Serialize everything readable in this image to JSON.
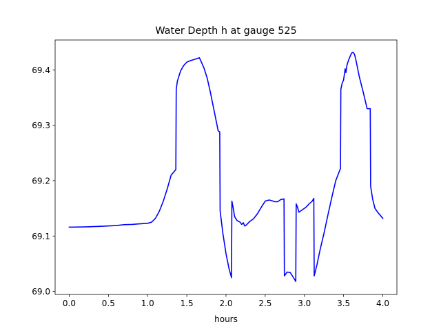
{
  "chart_data": {
    "type": "line",
    "title": "Water Depth h at gauge 525",
    "xlabel": "hours",
    "ylabel": "",
    "xlim": [
      -0.18,
      4.18
    ],
    "ylim": [
      68.9945,
      69.454
    ],
    "xticks": [
      0.0,
      0.5,
      1.0,
      1.5,
      2.0,
      2.5,
      3.0,
      3.5,
      4.0
    ],
    "xtick_labels": [
      "0.0",
      "0.5",
      "1.0",
      "1.5",
      "2.0",
      "2.5",
      "3.0",
      "3.5",
      "4.0"
    ],
    "yticks": [
      69.0,
      69.1,
      69.2,
      69.3,
      69.4
    ],
    "ytick_labels": [
      "69.0",
      "69.1",
      "69.2",
      "69.3",
      "69.4"
    ],
    "grid": false,
    "series": [
      {
        "color": "#0000ff",
        "x": [
          0.0,
          0.2,
          0.4,
          0.6,
          0.7,
          0.8,
          0.9,
          1.0,
          1.05,
          1.1,
          1.15,
          1.2,
          1.25,
          1.3,
          1.36,
          1.365,
          1.38,
          1.42,
          1.46,
          1.5,
          1.55,
          1.6,
          1.64,
          1.66,
          1.68,
          1.72,
          1.76,
          1.8,
          1.85,
          1.9,
          1.92,
          1.925,
          1.96,
          2.0,
          2.04,
          2.07,
          2.075,
          2.09,
          2.11,
          2.14,
          2.18,
          2.2,
          2.22,
          2.24,
          2.26,
          2.3,
          2.35,
          2.4,
          2.45,
          2.5,
          2.55,
          2.58,
          2.62,
          2.66,
          2.7,
          2.74,
          2.745,
          2.78,
          2.82,
          2.86,
          2.89,
          2.895,
          2.91,
          2.93,
          2.95,
          2.98,
          3.02,
          3.06,
          3.1,
          3.12,
          3.125,
          3.16,
          3.2,
          3.25,
          3.3,
          3.35,
          3.4,
          3.46,
          3.465,
          3.48,
          3.5,
          3.52,
          3.53,
          3.54,
          3.55,
          3.57,
          3.6,
          3.62,
          3.64,
          3.66,
          3.7,
          3.75,
          3.8,
          3.84,
          3.845,
          3.87,
          3.9,
          3.94,
          4.0
        ],
        "y": [
          69.116,
          69.1165,
          69.1175,
          69.119,
          69.1205,
          69.121,
          69.122,
          69.123,
          69.125,
          69.132,
          69.145,
          69.163,
          69.185,
          69.21,
          69.22,
          69.365,
          69.38,
          69.398,
          69.408,
          69.414,
          69.417,
          69.419,
          69.421,
          69.422,
          69.416,
          69.403,
          69.385,
          69.36,
          69.325,
          69.29,
          69.288,
          69.145,
          69.105,
          69.068,
          69.04,
          69.025,
          69.163,
          69.152,
          69.135,
          69.128,
          69.125,
          69.121,
          69.124,
          69.118,
          69.12,
          69.126,
          69.131,
          69.14,
          69.152,
          69.163,
          69.165,
          69.164,
          69.162,
          69.162,
          69.166,
          69.167,
          69.028,
          69.035,
          69.034,
          69.025,
          69.018,
          69.158,
          69.153,
          69.143,
          69.145,
          69.148,
          69.152,
          69.158,
          69.163,
          69.168,
          69.028,
          69.048,
          69.075,
          69.105,
          69.138,
          69.17,
          69.2,
          69.222,
          69.365,
          69.375,
          69.382,
          69.402,
          69.395,
          69.406,
          69.412,
          69.42,
          69.43,
          69.432,
          69.428,
          69.416,
          69.388,
          69.36,
          69.33,
          69.33,
          69.19,
          69.167,
          69.15,
          69.142,
          69.132
        ]
      }
    ]
  }
}
